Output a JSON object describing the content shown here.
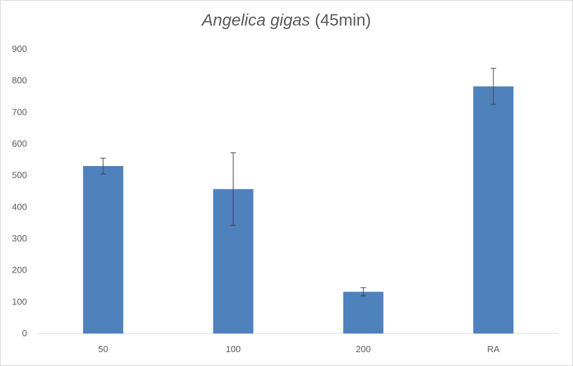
{
  "chart_data": {
    "type": "bar",
    "title_italic": "Angelica gigas",
    "title_rest": " (45min)",
    "categories": [
      "50",
      "100",
      "200",
      "RA"
    ],
    "values": [
      530,
      457,
      132,
      782
    ],
    "error": [
      25,
      115,
      13,
      57
    ],
    "ylim": [
      0,
      900
    ],
    "yticks": [
      "0",
      "100",
      "200",
      "300",
      "400",
      "500",
      "600",
      "700",
      "800",
      "900"
    ],
    "grid": false,
    "colors": {
      "bar": "#4F81BD",
      "error": "#404040",
      "axis": "#d9d9d9"
    }
  }
}
